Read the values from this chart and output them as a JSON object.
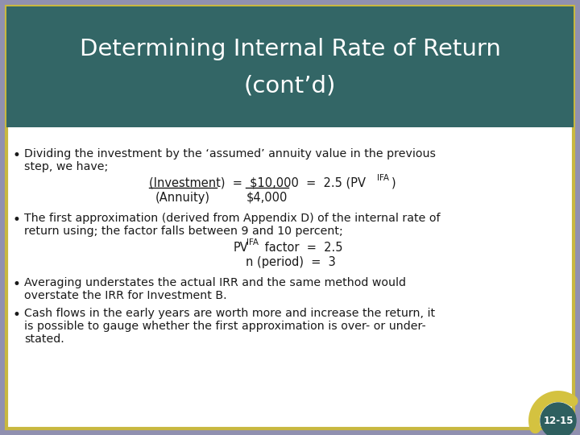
{
  "title_line1": "Determining Internal Rate of Return",
  "title_line2": "(cont’d)",
  "title_bg_color": "#336666",
  "title_text_color": "#FFFFFF",
  "body_bg_color": "#FFFFFF",
  "border_color_gold": "#C8B840",
  "border_color_purple": "#9090B0",
  "bullet_color": "#1A1A1A",
  "text_color": "#1A1A1A",
  "page_num": "12-15",
  "page_circle_color": "#2E5F5F",
  "page_arc_color": "#D4C240",
  "font_size_title": 21,
  "font_size_body": 10.2,
  "font_size_formula": 10.5
}
